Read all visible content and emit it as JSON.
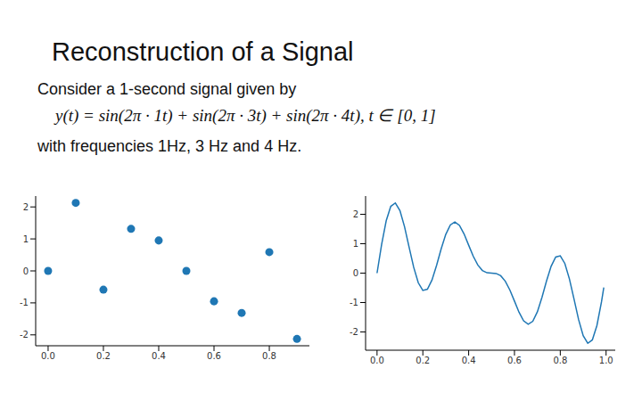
{
  "title": "Reconstruction of a Signal",
  "intro": "Consider a 1-second signal given by",
  "equation": "y(t) = sin(2π · 1t) + sin(2π · 3t) + sin(2π · 4t), t ∈ [0, 1]",
  "note": "with frequencies 1Hz, 3 Hz and 4 Hz.",
  "chart_data": [
    {
      "type": "scatter",
      "color": "#1f77b4",
      "x": [
        0,
        0.1,
        0.2,
        0.3,
        0.4,
        0.5,
        0.6,
        0.7,
        0.8,
        0.9
      ],
      "values": [
        0,
        2.127,
        -0.588,
        1.314,
        0.951,
        0,
        -0.951,
        -1.314,
        0.588,
        -2.127
      ],
      "xlim": [
        -0.045,
        0.945
      ],
      "xticks": [
        {
          "value": 0,
          "label": "0.0"
        },
        {
          "value": 0.2,
          "label": "0.2"
        },
        {
          "value": 0.4,
          "label": "0.4"
        },
        {
          "value": 0.6,
          "label": "0.6"
        },
        {
          "value": 0.8,
          "label": "0.8"
        }
      ],
      "ylim": [
        -2.34,
        2.34
      ],
      "yticks": [
        -2,
        -1,
        0,
        1,
        2
      ]
    },
    {
      "type": "line",
      "color": "#1f77b4",
      "x": [
        0,
        0.02,
        0.04,
        0.06,
        0.08,
        0.1,
        0.12,
        0.14,
        0.16,
        0.18,
        0.2,
        0.22,
        0.24,
        0.26,
        0.28,
        0.3,
        0.32,
        0.34,
        0.36,
        0.38,
        0.4,
        0.42,
        0.44,
        0.46,
        0.48,
        0.5,
        0.52,
        0.54,
        0.56,
        0.58,
        0.6,
        0.62,
        0.64,
        0.66,
        0.68,
        0.7,
        0.72,
        0.74,
        0.76,
        0.78,
        0.8,
        0.82,
        0.84,
        0.86,
        0.88,
        0.9,
        0.92,
        0.94,
        0.96,
        0.98,
        0.99
      ],
      "values": [
        0,
        0.975,
        1.778,
        2.271,
        2.385,
        2.127,
        1.58,
        0.884,
        0.199,
        -0.326,
        -0.588,
        -0.547,
        -0.233,
        0.264,
        0.823,
        1.314,
        1.638,
        1.74,
        1.62,
        1.33,
        0.951,
        0.575,
        0.275,
        0.089,
        0.012,
        0,
        -0.012,
        -0.089,
        -0.275,
        -0.575,
        -0.951,
        -1.33,
        -1.62,
        -1.74,
        -1.638,
        -1.314,
        -0.823,
        -0.264,
        0.233,
        0.547,
        0.588,
        0.326,
        -0.199,
        -0.884,
        -1.58,
        -2.127,
        -2.385,
        -2.271,
        -1.778,
        -0.975,
        -0.49
      ],
      "xlim": [
        -0.05,
        1.04
      ],
      "xticks": [
        {
          "value": 0,
          "label": "0.0"
        },
        {
          "value": 0.2,
          "label": "0.2"
        },
        {
          "value": 0.4,
          "label": "0.4"
        },
        {
          "value": 0.6,
          "label": "0.6"
        },
        {
          "value": 0.8,
          "label": "0.8"
        },
        {
          "value": 1,
          "label": "1.0"
        }
      ],
      "ylim": [
        -2.62,
        2.62
      ],
      "yticks": [
        -2,
        -1,
        0,
        1,
        2
      ]
    }
  ]
}
